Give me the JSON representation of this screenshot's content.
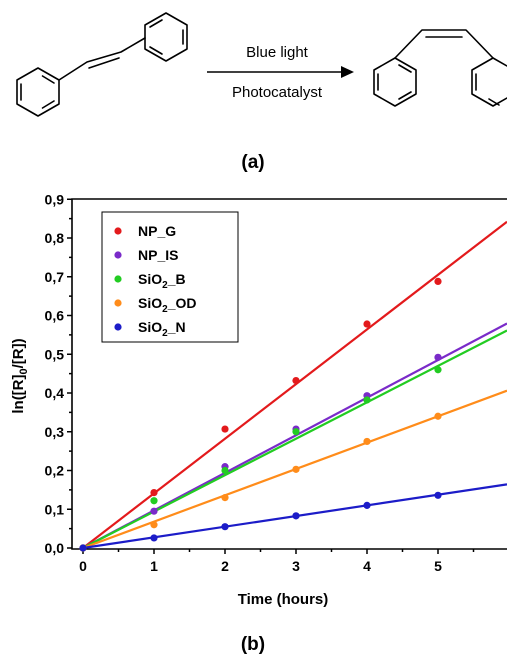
{
  "scheme": {
    "arrow_top_label": "Blue light",
    "arrow_bottom_label": "Photocatalyst",
    "panel_label": "(a)"
  },
  "chart_panel_label": "(b)",
  "chart_data": {
    "type": "scatter",
    "xlabel": "Time (hours)",
    "ylabel": "ln([R]0/[R])",
    "xlim": [
      -0.2,
      5.9
    ],
    "ylim": [
      -0.02,
      0.9
    ],
    "x_ticks": [
      "0",
      "1",
      "2",
      "3",
      "4",
      "5"
    ],
    "y_ticks": [
      "0,0",
      "0,1",
      "0,2",
      "0,3",
      "0,4",
      "0,5",
      "0,6",
      "0,7",
      "0,8",
      "0,9"
    ],
    "grid": false,
    "legend_position": "top-left",
    "fit_lines": "linear fit through origin for each series",
    "series": [
      {
        "name": "NP_G",
        "color": "#e31a1c",
        "x": [
          0,
          1,
          2,
          3,
          4,
          5
        ],
        "y": [
          0.0,
          0.143,
          0.307,
          0.432,
          0.578,
          0.688
        ],
        "slope": 0.141
      },
      {
        "name": "NP_IS",
        "color": "#7a2bc9",
        "x": [
          0,
          1,
          2,
          3,
          4,
          5
        ],
        "y": [
          0.0,
          0.095,
          0.21,
          0.307,
          0.393,
          0.492
        ],
        "slope": 0.097
      },
      {
        "name": "SiO2_B",
        "color": "#22cc22",
        "x": [
          0,
          1,
          2,
          3,
          4,
          5
        ],
        "y": [
          0.0,
          0.122,
          0.2,
          0.3,
          0.382,
          0.46
        ],
        "slope": 0.094
      },
      {
        "name": "SiO2_OD",
        "color": "#ff8c1a",
        "x": [
          0,
          1,
          2,
          3,
          4,
          5
        ],
        "y": [
          0.0,
          0.06,
          0.13,
          0.203,
          0.275,
          0.34
        ],
        "slope": 0.068
      },
      {
        "name": "SiO2_N",
        "color": "#1c1cc8",
        "x": [
          0,
          1,
          2,
          3,
          4,
          5
        ],
        "y": [
          0.0,
          0.026,
          0.055,
          0.083,
          0.11,
          0.136
        ],
        "slope": 0.0275
      }
    ]
  }
}
